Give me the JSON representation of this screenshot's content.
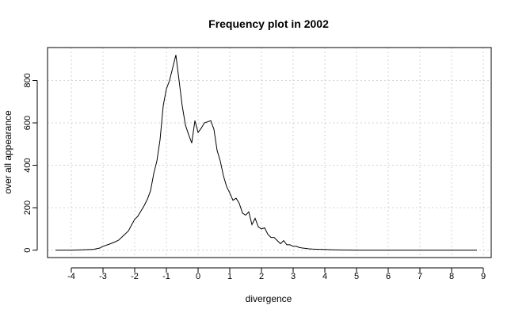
{
  "chart_data": {
    "type": "line",
    "title": "Frequency plot in 2002",
    "xlabel": "divergence",
    "ylabel": "over all appearance",
    "xlim": [
      -4.75,
      9.25
    ],
    "ylim": [
      -35,
      955
    ],
    "xticks": [
      -4,
      -3,
      -2,
      -1,
      0,
      1,
      2,
      3,
      4,
      5,
      6,
      7,
      8,
      9
    ],
    "yticks": [
      0,
      200,
      400,
      600,
      800
    ],
    "grid": true,
    "x": [
      -4.5,
      -4.0,
      -3.6,
      -3.3,
      -3.1,
      -3.0,
      -2.8,
      -2.6,
      -2.5,
      -2.4,
      -2.2,
      -2.1,
      -2.0,
      -1.9,
      -1.8,
      -1.7,
      -1.6,
      -1.5,
      -1.4,
      -1.3,
      -1.2,
      -1.1,
      -1.0,
      -0.9,
      -0.8,
      -0.7,
      -0.6,
      -0.5,
      -0.4,
      -0.3,
      -0.2,
      -0.1,
      0.0,
      0.1,
      0.2,
      0.3,
      0.4,
      0.5,
      0.6,
      0.7,
      0.8,
      0.9,
      1.0,
      1.1,
      1.2,
      1.3,
      1.4,
      1.5,
      1.6,
      1.7,
      1.8,
      1.9,
      2.0,
      2.1,
      2.2,
      2.3,
      2.4,
      2.5,
      2.6,
      2.7,
      2.8,
      2.9,
      3.0,
      3.1,
      3.2,
      3.3,
      3.4,
      3.5,
      3.6,
      3.8,
      4.0,
      4.2,
      4.5,
      5.0,
      5.5,
      6.0,
      7.0,
      8.0,
      8.8
    ],
    "y": [
      0,
      0,
      2,
      4,
      10,
      18,
      28,
      40,
      48,
      62,
      90,
      118,
      145,
      160,
      185,
      210,
      240,
      280,
      360,
      420,
      520,
      680,
      760,
      800,
      860,
      920,
      800,
      680,
      590,
      545,
      505,
      610,
      555,
      575,
      600,
      605,
      610,
      570,
      470,
      420,
      350,
      300,
      270,
      235,
      245,
      220,
      175,
      165,
      180,
      120,
      150,
      110,
      100,
      105,
      75,
      60,
      60,
      45,
      30,
      45,
      25,
      25,
      18,
      18,
      12,
      10,
      8,
      6,
      5,
      4,
      3,
      2,
      1,
      0,
      0,
      0,
      0,
      0,
      0
    ]
  }
}
